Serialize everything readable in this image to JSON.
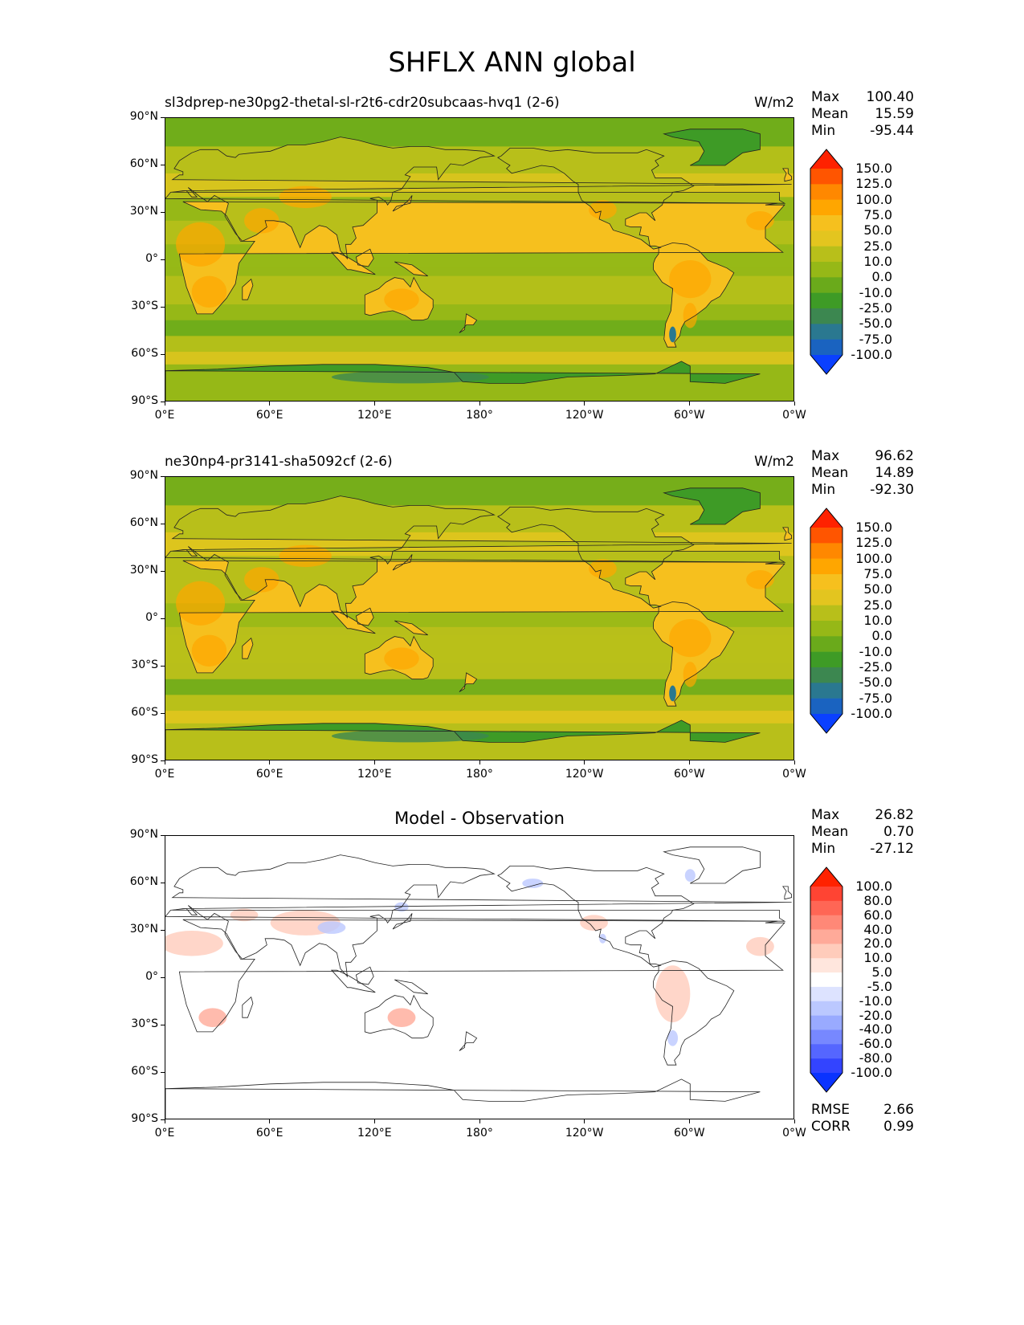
{
  "figure": {
    "title": "SHFLX ANN global"
  },
  "chart_data": [
    {
      "type": "heatmap",
      "title": "sl3dprep-ne30pg2-thetal-sl-r2t6-cdr20subcaas-hvq1 (2-6)",
      "units": "W/m2",
      "stats": [
        {
          "label": "Max",
          "value": "100.40"
        },
        {
          "label": "Mean",
          "value": "15.59"
        },
        {
          "label": "Min",
          "value": "-95.44"
        }
      ],
      "x_ticks": [
        "0°E",
        "60°E",
        "120°E",
        "180°",
        "120°W",
        "60°W",
        "0°W"
      ],
      "y_ticks": [
        "90°N",
        "60°N",
        "30°N",
        "0°",
        "30°S",
        "60°S",
        "90°S"
      ],
      "xlim": [
        0,
        360
      ],
      "ylim": [
        -90,
        90
      ],
      "colorbar": {
        "labels": [
          "150.0",
          "125.0",
          "100.0",
          "75.0",
          "50.0",
          "25.0",
          "10.0",
          "0.0",
          "-10.0",
          "-25.0",
          "-50.0",
          "-75.0",
          "-100.0"
        ],
        "colors": [
          "#ff2200",
          "#ff5500",
          "#ff8800",
          "#ffa600",
          "#f6c01e",
          "#e3c51f",
          "#b8bf1a",
          "#96b817",
          "#6aaa1b",
          "#3e9b26",
          "#3c8750",
          "#2a7890",
          "#1a63c0",
          "#0a40ff"
        ]
      },
      "field": {
        "ocean_color": "#96b817",
        "land_color": "#f6c01e",
        "polar_color": "#3e9b26"
      }
    },
    {
      "type": "heatmap",
      "title": "ne30np4-pr3141-sha5092cf (2-6)",
      "units": "W/m2",
      "stats": [
        {
          "label": "Max",
          "value": "96.62"
        },
        {
          "label": "Mean",
          "value": "14.89"
        },
        {
          "label": "Min",
          "value": "-92.30"
        }
      ],
      "x_ticks": [
        "0°E",
        "60°E",
        "120°E",
        "180°",
        "120°W",
        "60°W",
        "0°W"
      ],
      "y_ticks": [
        "90°N",
        "60°N",
        "30°N",
        "0°",
        "30°S",
        "60°S",
        "90°S"
      ],
      "xlim": [
        0,
        360
      ],
      "ylim": [
        -90,
        90
      ],
      "colorbar": {
        "labels": [
          "150.0",
          "125.0",
          "100.0",
          "75.0",
          "50.0",
          "25.0",
          "10.0",
          "0.0",
          "-10.0",
          "-25.0",
          "-50.0",
          "-75.0",
          "-100.0"
        ],
        "colors": [
          "#ff2200",
          "#ff5500",
          "#ff8800",
          "#ffa600",
          "#f6c01e",
          "#e3c51f",
          "#b8bf1a",
          "#96b817",
          "#6aaa1b",
          "#3e9b26",
          "#3c8750",
          "#2a7890",
          "#1a63c0",
          "#0a40ff"
        ]
      },
      "field": {
        "ocean_color": "#b8bf1a",
        "land_color": "#f6c01e",
        "polar_color": "#3e9b26"
      }
    },
    {
      "type": "heatmap",
      "title": "Model - Observation",
      "units": "",
      "stats": [
        {
          "label": "Max",
          "value": "26.82"
        },
        {
          "label": "Mean",
          "value": "0.70"
        },
        {
          "label": "Min",
          "value": "-27.12"
        }
      ],
      "metrics": [
        {
          "label": "RMSE",
          "value": "2.66"
        },
        {
          "label": "CORR",
          "value": "0.99"
        }
      ],
      "x_ticks": [
        "0°E",
        "60°E",
        "120°E",
        "180°",
        "120°W",
        "60°W",
        "0°W"
      ],
      "y_ticks": [
        "90°N",
        "60°N",
        "30°N",
        "0°",
        "30°S",
        "60°S",
        "90°S"
      ],
      "xlim": [
        0,
        360
      ],
      "ylim": [
        -90,
        90
      ],
      "colorbar": {
        "labels": [
          "100.0",
          "80.0",
          "60.0",
          "40.0",
          "20.0",
          "10.0",
          "5.0",
          "-5.0",
          "-10.0",
          "-20.0",
          "-40.0",
          "-60.0",
          "-80.0",
          "-100.0"
        ],
        "colors": [
          "#ff2200",
          "#ff4433",
          "#ff6655",
          "#ff8877",
          "#ffaa99",
          "#ffccbb",
          "#ffe6dd",
          "#ffffff",
          "#dde3ff",
          "#bbc8ff",
          "#99aaff",
          "#7788ff",
          "#5566ff",
          "#3344ff",
          "#0a33ff"
        ]
      },
      "field": {
        "ocean_color": "#ffffff",
        "land_color": "#ffffff",
        "polar_color": "#ffffff"
      }
    }
  ]
}
